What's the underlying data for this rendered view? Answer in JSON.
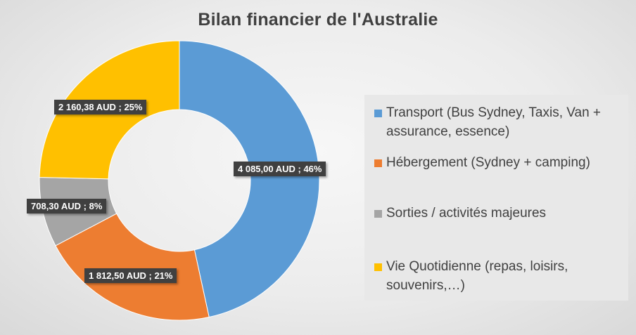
{
  "chart_data": {
    "type": "pie",
    "subtype": "doughnut",
    "title": "Bilan financier de l'Australie",
    "categories": [
      "Transport (Bus Sydney, Taxis, Van + assurance, essence)",
      "Hébergement (Sydney + camping)",
      "Sorties / activités majeures",
      "Vie Quotidienne (repas, loisirs, souvenirs,…)"
    ],
    "values": [
      4085.0,
      1812.5,
      708.3,
      2160.38
    ],
    "percentages": [
      46,
      21,
      8,
      25
    ],
    "data_labels": [
      "4 085,00 AUD ; 46%",
      "1 812,50 AUD ; 21%",
      "708,30 AUD ; 8%",
      "2 160,38 AUD ; 25%"
    ],
    "colors": [
      "#5B9BD5",
      "#ED7D31",
      "#A5A5A5",
      "#FFC000"
    ],
    "legend_position": "right"
  }
}
